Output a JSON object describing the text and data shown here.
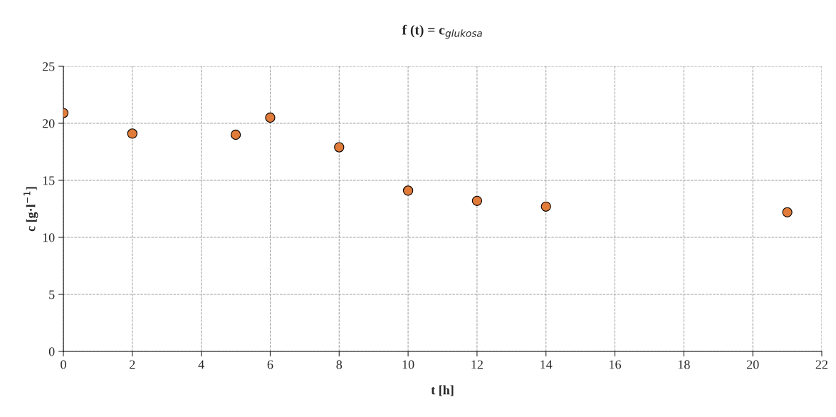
{
  "chart_data": {
    "type": "scatter",
    "title": "f (t) = c$_{glukosa}$",
    "xlabel": "t [h]",
    "ylabel": "c [g·l$^{−1}$]",
    "x": [
      0,
      2,
      5,
      6,
      8,
      10,
      12,
      14,
      21
    ],
    "series": [
      {
        "color": "#e07b39",
        "values": [
          20.9,
          19.1,
          19.0,
          20.5,
          17.9,
          14.1,
          13.2,
          12.7,
          12.2
        ]
      }
    ],
    "xlim": [
      0,
      22
    ],
    "xticks": [
      0,
      2,
      4,
      6,
      8,
      10,
      12,
      14,
      16,
      18,
      20,
      22
    ],
    "ylim": [
      0,
      25
    ],
    "yticks": [
      0,
      5,
      10,
      15,
      20,
      25
    ],
    "grid": true,
    "marker": "circle",
    "legend": false
  }
}
